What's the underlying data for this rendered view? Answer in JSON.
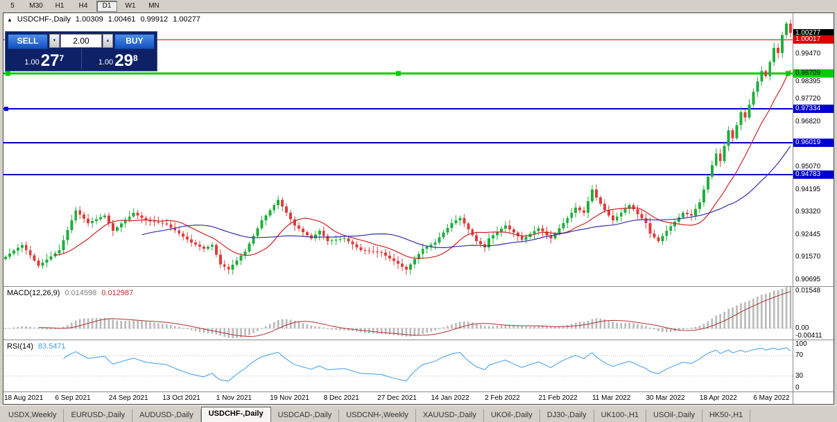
{
  "toolbar": {
    "timeframes": [
      "5",
      "M30",
      "H1",
      "H4",
      "D1",
      "W1",
      "MN"
    ],
    "active": "D1"
  },
  "chart": {
    "header": {
      "marker": "▲",
      "title": "USDCHF-,Daily",
      "open": "1.00309",
      "high": "1.00461",
      "low": "0.99912",
      "close": "1.00277"
    },
    "trade_widget": {
      "sell_label": "SELL",
      "buy_label": "BUY",
      "volume": "2.00",
      "volume_down_glyph": "▼",
      "volume_up_glyph": "▲",
      "sell_price": {
        "small": "1.00",
        "big": "27",
        "sup": "7"
      },
      "buy_price": {
        "small": "1.00",
        "big": "29",
        "sup": "8"
      }
    },
    "price_axis_ticks": [
      "0.99470",
      "0.98395",
      "0.97720",
      "0.96820",
      "0.95070",
      "0.94195",
      "0.93320",
      "0.92445",
      "0.91570",
      "0.90695"
    ],
    "price_tags": [
      {
        "text": "1.00277",
        "bg": "#000000",
        "fg": "#ffffff",
        "name": "current-price-tag"
      },
      {
        "text": "1.00017",
        "bg": "#dd0000",
        "fg": "#ffffff",
        "name": "hline-price-tag"
      },
      {
        "text": "0.98709",
        "bg": "#00cc00",
        "fg": "#000000",
        "name": "hline-price-tag"
      },
      {
        "text": "0.97334",
        "bg": "#0000cc",
        "fg": "#ffffff",
        "name": "hline-price-tag"
      },
      {
        "text": "0.96019",
        "bg": "#0000cc",
        "fg": "#ffffff",
        "name": "hline-price-tag"
      },
      {
        "text": "0.94783",
        "bg": "#0000cc",
        "fg": "#ffffff",
        "name": "hline-price-tag"
      }
    ],
    "hlines": [
      {
        "price": 1.00017,
        "color": "#dd0000",
        "width": 1
      },
      {
        "price": 0.98709,
        "color": "#00cc00",
        "width": 3,
        "handles": true
      },
      {
        "price": 0.97334,
        "color": "#0000cc",
        "width": 2,
        "left_handle": true
      },
      {
        "price": 0.96019,
        "color": "#0000cc",
        "width": 2
      },
      {
        "price": 0.94783,
        "color": "#0000cc",
        "width": 2
      }
    ]
  },
  "chart_data": {
    "type": "candlestick",
    "title": "USDCHF-,Daily",
    "ylim": [
      0.9045,
      1.0105
    ],
    "open_first": 0.915,
    "close": [
      0.916,
      0.9171,
      0.9183,
      0.9194,
      0.9205,
      0.9185,
      0.9165,
      0.9145,
      0.9125,
      0.9137,
      0.9149,
      0.9161,
      0.9173,
      0.9185,
      0.9224,
      0.9263,
      0.9301,
      0.934,
      0.9323,
      0.9307,
      0.929,
      0.9298,
      0.9305,
      0.9313,
      0.932,
      0.929,
      0.926,
      0.9274,
      0.9288,
      0.9302,
      0.9316,
      0.933,
      0.932,
      0.931,
      0.93,
      0.9297,
      0.9294,
      0.9291,
      0.9288,
      0.9285,
      0.9273,
      0.9262,
      0.925,
      0.9238,
      0.9227,
      0.9215,
      0.9207,
      0.9198,
      0.919,
      0.9198,
      0.9205,
      0.9168,
      0.913,
      0.912,
      0.911,
      0.9128,
      0.9145,
      0.9163,
      0.918,
      0.921,
      0.924,
      0.927,
      0.93,
      0.932,
      0.934,
      0.936,
      0.938,
      0.9355,
      0.933,
      0.9305,
      0.928,
      0.9268,
      0.9255,
      0.9243,
      0.923,
      0.9245,
      0.926,
      0.924,
      0.922,
      0.9223,
      0.9225,
      0.9228,
      0.923,
      0.9219,
      0.9208,
      0.9196,
      0.9185,
      0.9183,
      0.9181,
      0.9179,
      0.9177,
      0.9175,
      0.9164,
      0.9153,
      0.9143,
      0.9132,
      0.9121,
      0.911,
      0.913,
      0.915,
      0.917,
      0.919,
      0.9198,
      0.9207,
      0.9215,
      0.9234,
      0.9253,
      0.9271,
      0.929,
      0.93,
      0.931,
      0.9288,
      0.9265,
      0.9243,
      0.922,
      0.9208,
      0.9195,
      0.923,
      0.9243,
      0.9255,
      0.9268,
      0.928,
      0.9266,
      0.9253,
      0.9239,
      0.9225,
      0.9236,
      0.9248,
      0.9259,
      0.927,
      0.9257,
      0.9243,
      0.923,
      0.925,
      0.927,
      0.929,
      0.931,
      0.933,
      0.935,
      0.934,
      0.933,
      0.9375,
      0.942,
      0.939,
      0.9365,
      0.934,
      0.932,
      0.93,
      0.9315,
      0.933,
      0.9345,
      0.936,
      0.9343,
      0.9325,
      0.9308,
      0.929,
      0.925,
      0.9235,
      0.922,
      0.924,
      0.926,
      0.9278,
      0.9295,
      0.9313,
      0.933,
      0.9325,
      0.932,
      0.9345,
      0.937,
      0.942,
      0.947,
      0.9515,
      0.956,
      0.953,
      0.959,
      0.965,
      0.962,
      0.967,
      0.972,
      0.97,
      0.975,
      0.98,
      0.984,
      0.988,
      0.986,
      0.9915,
      0.997,
      0.995,
      1.002,
      1.0065,
      1.0028
    ],
    "up_color": "#1fae3d",
    "down_color": "#e03c3c",
    "overlays": [
      {
        "name": "ma-fast",
        "type": "sma",
        "period": 13,
        "color": "#cc2222"
      },
      {
        "name": "ma-slow",
        "type": "sma",
        "period": 34,
        "color": "#3030a8"
      }
    ]
  },
  "macd": {
    "label": "MACD(12,26,9)",
    "main_value": "0.014598",
    "signal_value": "0.012987",
    "axis_max": "0.01548",
    "axis_zero": "0.00",
    "axis_min": "-0.00411",
    "bar_color": "#c0c0c0",
    "signal_color": "#b03030"
  },
  "rsi": {
    "label": "RSI(14)",
    "value": "83.5471",
    "levels": [
      "100",
      "70",
      "30",
      "0"
    ],
    "line_color": "#3e9bea"
  },
  "time_axis": {
    "labels": [
      "18 Aug 2021",
      "6 Sep 2021",
      "24 Sep 2021",
      "13 Oct 2021",
      "1 Nov 2021",
      "19 Nov 2021",
      "8 Dec 2021",
      "27 Dec 2021",
      "14 Jan 2022",
      "2 Feb 2022",
      "21 Feb 2022",
      "11 Mar 2022",
      "30 Mar 2022",
      "18 Apr 2022",
      "6 May 2022"
    ],
    "indices": [
      0,
      13,
      26,
      39,
      52,
      65,
      78,
      91,
      104,
      117,
      130,
      143,
      156,
      169,
      182
    ]
  },
  "tabs": {
    "active_index": 3,
    "items": [
      "USDX,Weekly",
      "EURUSD-,Daily",
      "AUDUSD-,Daily",
      "USDCHF-,Daily",
      "USDCAD-,Daily",
      "USDCNH-,Weekly",
      "XAUUSD-,Daily",
      "UKOil-,Daily",
      "DJ30-,Daily",
      "UK100-,H1",
      "USOil-,Daily",
      "HK50-,H1"
    ]
  }
}
